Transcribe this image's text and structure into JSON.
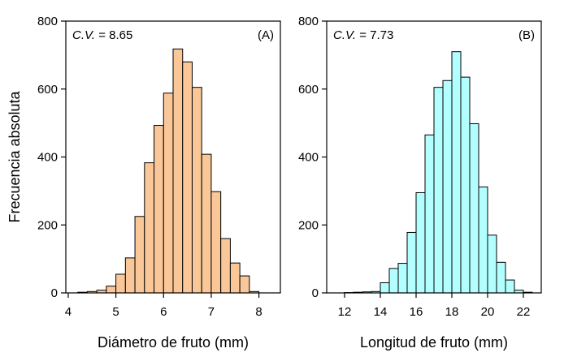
{
  "chart_data": [
    {
      "type": "bar",
      "panel_label": "(A)",
      "cv_label": "C.V.",
      "cv_value": "= 8.65",
      "xlabel": "Diámetro de fruto (mm)",
      "ylabel": "Frecuencia absoluta",
      "xlim": [
        3.95,
        8.45
      ],
      "ylim": [
        0,
        800
      ],
      "xticks": [
        4,
        5,
        6,
        7,
        8
      ],
      "yticks": [
        0,
        200,
        400,
        600,
        800
      ],
      "bar_color": "#fac898",
      "bin_width": 0.2,
      "bins": [
        {
          "start": 4.2,
          "value": 2
        },
        {
          "start": 4.4,
          "value": 4
        },
        {
          "start": 4.6,
          "value": 8
        },
        {
          "start": 4.8,
          "value": 20
        },
        {
          "start": 5.0,
          "value": 55
        },
        {
          "start": 5.2,
          "value": 103
        },
        {
          "start": 5.4,
          "value": 225
        },
        {
          "start": 5.6,
          "value": 383
        },
        {
          "start": 5.8,
          "value": 493
        },
        {
          "start": 6.0,
          "value": 588
        },
        {
          "start": 6.2,
          "value": 718
        },
        {
          "start": 6.4,
          "value": 680
        },
        {
          "start": 6.6,
          "value": 605
        },
        {
          "start": 6.8,
          "value": 408
        },
        {
          "start": 7.0,
          "value": 298
        },
        {
          "start": 7.2,
          "value": 160
        },
        {
          "start": 7.4,
          "value": 88
        },
        {
          "start": 7.6,
          "value": 50
        },
        {
          "start": 7.8,
          "value": 4
        }
      ]
    },
    {
      "type": "bar",
      "panel_label": "(B)",
      "cv_label": "C.V.",
      "cv_value": "= 7.73",
      "xlabel": "Longitud de fruto (mm)",
      "ylabel": "",
      "xlim": [
        11.0,
        23.0
      ],
      "ylim": [
        0,
        800
      ],
      "xticks": [
        12,
        14,
        16,
        18,
        20,
        22
      ],
      "yticks": [
        0,
        200,
        400,
        600,
        800
      ],
      "bar_color": "#b3ffff",
      "bin_width": 0.5,
      "bins": [
        {
          "start": 12.0,
          "value": 1
        },
        {
          "start": 12.5,
          "value": 2
        },
        {
          "start": 13.0,
          "value": 3
        },
        {
          "start": 13.5,
          "value": 4
        },
        {
          "start": 14.0,
          "value": 30
        },
        {
          "start": 14.5,
          "value": 72
        },
        {
          "start": 15.0,
          "value": 87
        },
        {
          "start": 15.5,
          "value": 178
        },
        {
          "start": 16.0,
          "value": 295
        },
        {
          "start": 16.5,
          "value": 465
        },
        {
          "start": 17.0,
          "value": 605
        },
        {
          "start": 17.5,
          "value": 625
        },
        {
          "start": 18.0,
          "value": 710
        },
        {
          "start": 18.5,
          "value": 635
        },
        {
          "start": 19.0,
          "value": 498
        },
        {
          "start": 19.5,
          "value": 312
        },
        {
          "start": 20.0,
          "value": 170
        },
        {
          "start": 20.5,
          "value": 90
        },
        {
          "start": 21.0,
          "value": 38
        },
        {
          "start": 21.5,
          "value": 8
        },
        {
          "start": 22.0,
          "value": 2
        }
      ]
    }
  ]
}
